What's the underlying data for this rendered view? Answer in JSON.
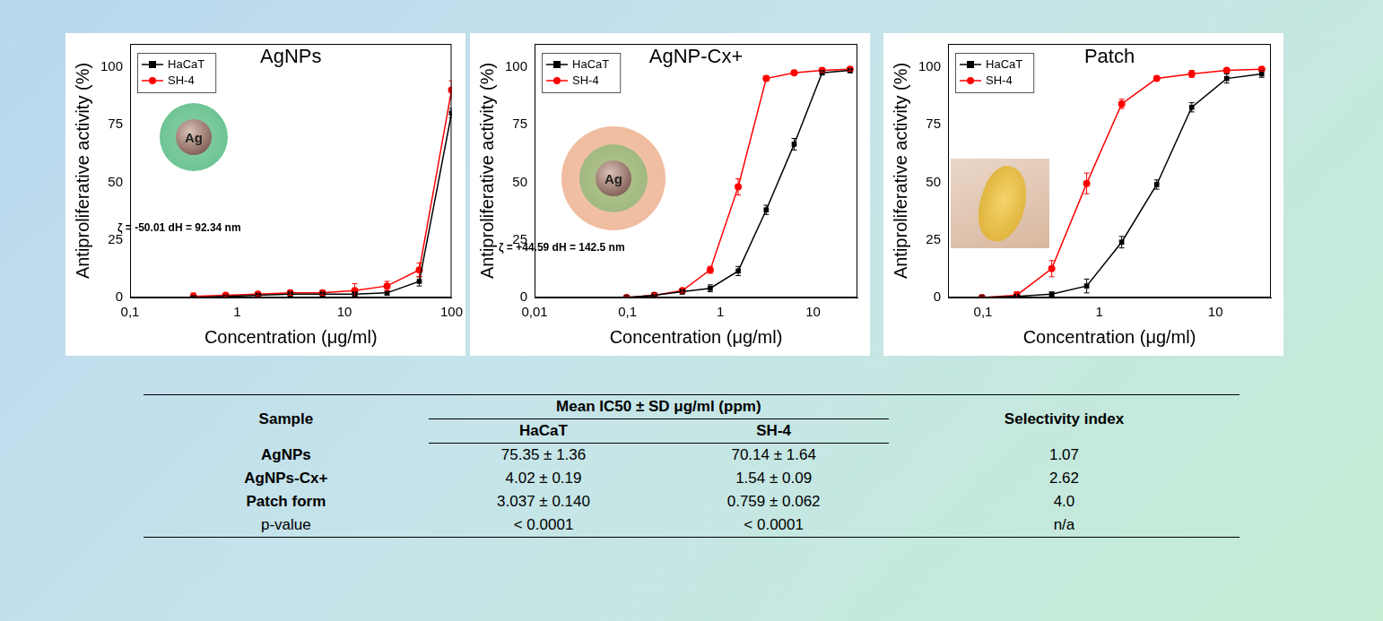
{
  "chart_data": [
    {
      "type": "line",
      "title": "AgNPs",
      "x_label": "Concentration (μg/ml)",
      "y_label": "Antiproliferative activity (%)",
      "log": "x",
      "grid": false,
      "legend": "upper left",
      "xlim": [
        0.1,
        100
      ],
      "xticks": [
        {
          "value": 0.1,
          "label": "0,1"
        },
        1,
        10,
        100
      ],
      "ylim": [
        0,
        110
      ],
      "yticks": [
        0,
        25,
        50,
        75,
        100
      ],
      "x": [
        0.39,
        0.78,
        1.56,
        3.125,
        6.25,
        12.5,
        25,
        50,
        100
      ],
      "series": [
        {
          "name": "HaCaT",
          "color": "#000000",
          "marker": "square",
          "line_style": "solid",
          "values": [
            0,
            0.5,
            1,
            1.5,
            1.5,
            1.5,
            2,
            7,
            80
          ],
          "errors": [
            0.5,
            0.5,
            0.5,
            0.8,
            0.8,
            0.8,
            1,
            2,
            2
          ]
        },
        {
          "name": "SH-4",
          "color": "#ff0000",
          "marker": "circle",
          "line_style": "solid",
          "values": [
            0.5,
            1,
            1.5,
            2,
            2,
            3,
            5,
            12,
            90
          ],
          "errors": [
            1.5,
            0.5,
            0.8,
            1,
            1,
            3,
            2,
            3,
            4
          ]
        }
      ],
      "inset_text": "Ag",
      "annotation": "ζ = -50.01 dH = 92.34 nm"
    },
    {
      "type": "line",
      "title": "AgNP-Cx+",
      "x_label": "Concentration (μg/ml)",
      "y_label": "Antiproliferative activity (%)",
      "log": "x",
      "grid": false,
      "legend": "upper left",
      "xlim": [
        0.01,
        30
      ],
      "xticks": [
        {
          "value": 0.01,
          "label": "0,01"
        },
        {
          "value": 0.1,
          "label": "0,1"
        },
        1,
        10
      ],
      "ylim": [
        0,
        110
      ],
      "yticks": [
        0,
        25,
        50,
        75,
        100
      ],
      "x": [
        0.098,
        0.195,
        0.39,
        0.78,
        1.56,
        3.125,
        6.25,
        12.5,
        25
      ],
      "series": [
        {
          "name": "HaCaT",
          "color": "#000000",
          "marker": "square",
          "line_style": "solid",
          "values": [
            0,
            1,
            2.5,
            4,
            11.5,
            38,
            66.5,
            97.5,
            98.5
          ],
          "errors": [
            0.5,
            0.8,
            1,
            1.5,
            2,
            2,
            2.5,
            1,
            1
          ]
        },
        {
          "name": "SH-4",
          "color": "#ff0000",
          "marker": "circle",
          "line_style": "solid",
          "values": [
            0,
            1,
            3,
            12,
            48,
            95,
            97.5,
            98.5,
            99
          ],
          "errors": [
            0.5,
            0.8,
            1,
            1.5,
            3.5,
            1,
            0.8,
            0.8,
            0.8
          ]
        }
      ],
      "inset_text": "Ag",
      "annotation": "ζ = +44.59 dH = 142.5 nm"
    },
    {
      "type": "line",
      "title": "Patch",
      "x_label": "Concentration (μg/ml)",
      "y_label": "Antiproliferative activity (%)",
      "log": "x",
      "grid": false,
      "legend": "upper left",
      "xlim": [
        0.05,
        30
      ],
      "xticks": [
        {
          "value": 0.1,
          "label": "0,1"
        },
        1,
        10
      ],
      "ylim": [
        0,
        110
      ],
      "yticks": [
        0,
        25,
        50,
        75,
        100
      ],
      "x": [
        0.098,
        0.195,
        0.39,
        0.78,
        1.56,
        3.125,
        6.25,
        12.5,
        25
      ],
      "series": [
        {
          "name": "HaCaT",
          "color": "#000000",
          "marker": "square",
          "line_style": "solid",
          "values": [
            0,
            0.5,
            1.5,
            5,
            24,
            49,
            82.5,
            95,
            97
          ],
          "errors": [
            0.5,
            0.5,
            0.8,
            3,
            2.5,
            2,
            2,
            2,
            1.5
          ]
        },
        {
          "name": "SH-4",
          "color": "#ff0000",
          "marker": "circle",
          "line_style": "solid",
          "values": [
            0,
            1,
            12.5,
            49.5,
            84,
            95,
            97,
            98.5,
            99
          ],
          "errors": [
            0.5,
            1.5,
            3.5,
            4.5,
            2,
            0.8,
            1.5,
            0.8,
            0.8
          ]
        }
      ]
    }
  ],
  "table": {
    "header": [
      "Sample",
      "Mean IC50 ± SD μg/ml (ppm)",
      "Selectivity index"
    ],
    "subheader": [
      "HaCaT",
      "SH-4"
    ],
    "rows": [
      [
        "AgNPs",
        "75.35 ± 1.36",
        "70.14 ± 1.64",
        "1.07"
      ],
      [
        "AgNPs-Cx+",
        "4.02 ± 0.19",
        "1.54 ± 0.09",
        "2.62"
      ],
      [
        "Patch form",
        "3.037 ± 0.140",
        "0.759 ± 0.062",
        "4.0"
      ],
      [
        "p-value",
        "< 0.0001",
        "< 0.0001",
        "n/a"
      ]
    ]
  }
}
